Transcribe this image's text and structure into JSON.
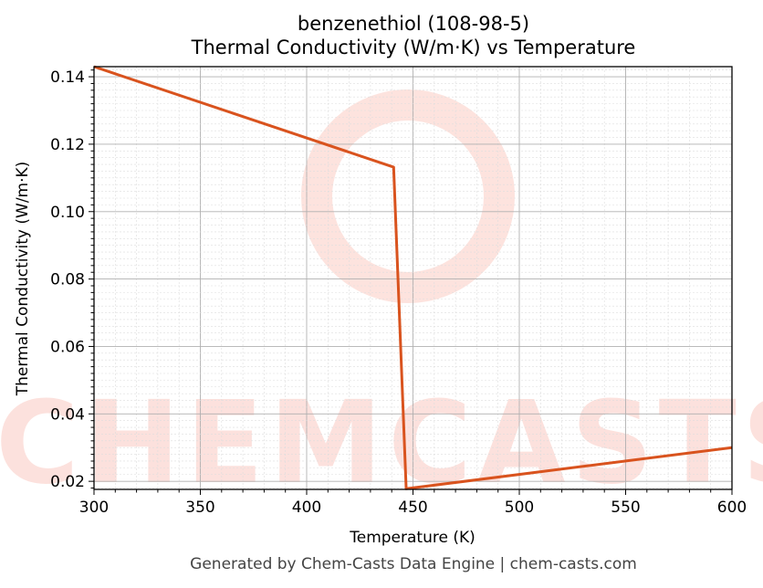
{
  "chart_data": {
    "type": "line",
    "title": "benzenethiol (108-98-5)",
    "subtitle": "Thermal Conductivity (W/m·K) vs Temperature",
    "xlabel": "Temperature (K)",
    "ylabel": "Thermal Conductivity (W/m·K)",
    "xlim": [
      300,
      600
    ],
    "ylim": [
      0.0176,
      0.143
    ],
    "xticks": [
      "300",
      "350",
      "400",
      "450",
      "500",
      "550",
      "600"
    ],
    "yticks": [
      "0.02",
      "0.04",
      "0.06",
      "0.08",
      "0.10",
      "0.12",
      "0.14"
    ],
    "grid": true,
    "series": [
      {
        "color": "#d9531e",
        "x": [
          300,
          440.9,
          446.8,
          600
        ],
        "y": [
          0.143,
          0.1132,
          0.0178,
          0.03
        ]
      }
    ]
  },
  "watermark": "CHEMCASTS",
  "footer": "Generated by Chem-Casts Data Engine | chem-casts.com"
}
